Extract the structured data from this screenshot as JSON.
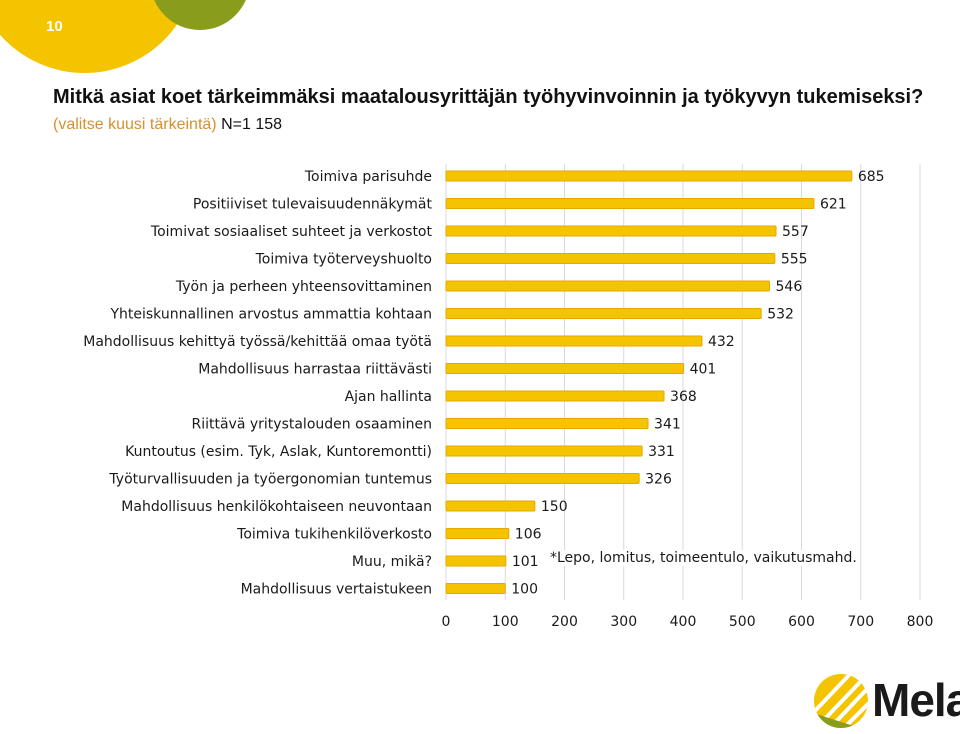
{
  "page_number": "10",
  "title": "Mitkä asiat koet tärkeimmäksi maatalousyrittäjän työhyvinvoinnin ja työkyvyn tukemiseksi?",
  "subtitle": {
    "paren_text": "(valitse kuusi tärkeintä)",
    "count_text": "N=1 158"
  },
  "footnote": "*Lepo, lomitus, toimeentulo, vaikutusmahd.",
  "logo_text": "Mela",
  "colors": {
    "bar_fill": "#f5c400",
    "bar_stroke": "#e6a800",
    "grid": "#d9d9d9",
    "accent_orange": "#d7902c",
    "logo_green": "#8a9c1c"
  },
  "chart_data": {
    "type": "bar",
    "orientation": "horizontal",
    "categories": [
      "Toimiva parisuhde",
      "Positiiviset tulevaisuudennäkymät",
      "Toimivat sosiaaliset suhteet ja verkostot",
      "Toimiva työterveyshuolto",
      "Työn ja perheen yhteensovittaminen",
      "Yhteiskunnallinen arvostus ammattia kohtaan",
      "Mahdollisuus kehittyä työssä/kehittää omaa työtä",
      "Mahdollisuus harrastaa riittävästi",
      "Ajan hallinta",
      "Riittävä yritystalouden osaaminen",
      "Kuntoutus (esim. Tyk, Aslak, Kuntoremontti)",
      "Työturvallisuuden ja työergonomian tuntemus",
      "Mahdollisuus henkilökohtaiseen neuvontaan",
      "Toimiva tukihenkilöverkosto",
      "Muu, mikä?",
      "Mahdollisuus vertaistukeen"
    ],
    "values": [
      685,
      621,
      557,
      555,
      546,
      532,
      432,
      401,
      368,
      341,
      331,
      326,
      150,
      106,
      101,
      100
    ],
    "data_labels": [
      "685",
      "621",
      "557",
      "555",
      "546",
      "532",
      "432",
      "401",
      "368",
      "341",
      "331",
      "326",
      "150",
      "106",
      "101",
      "100"
    ],
    "xlim": [
      0,
      800
    ],
    "x_ticks": [
      "0",
      "100",
      "200",
      "300",
      "400",
      "500",
      "600",
      "700",
      "800"
    ],
    "grid": true,
    "legend": "none"
  }
}
